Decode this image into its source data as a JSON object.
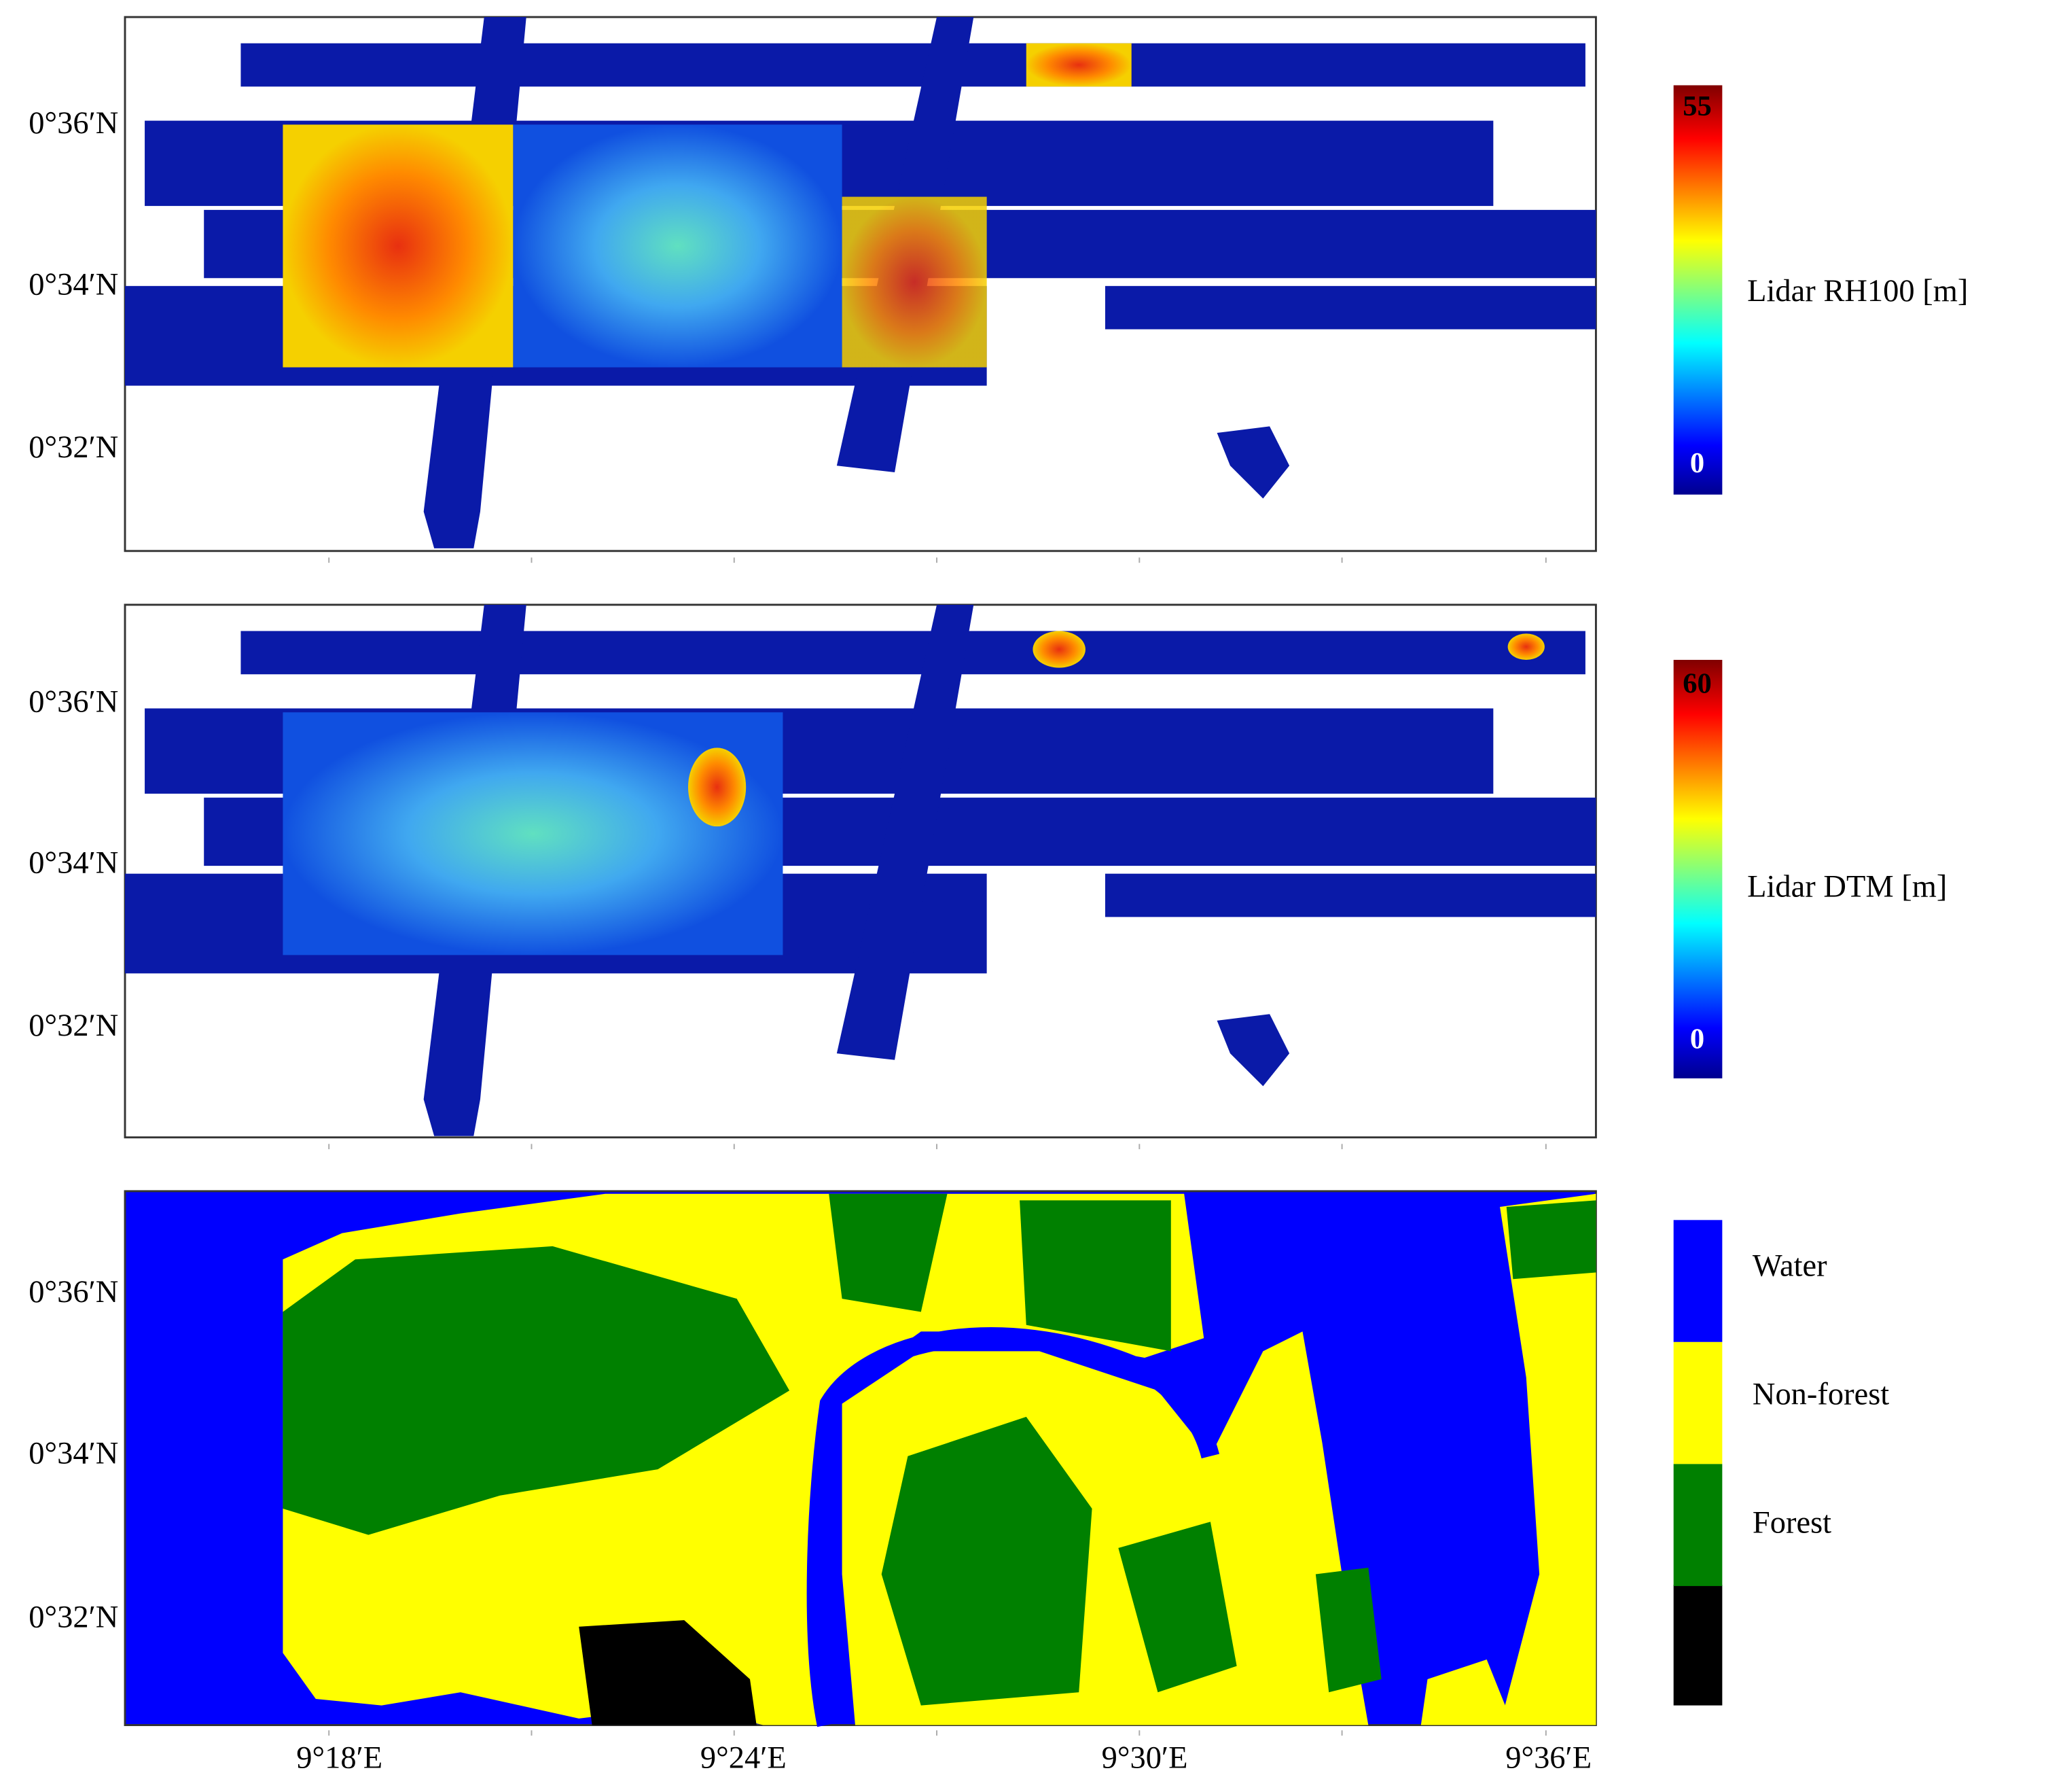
{
  "panels": [
    {
      "lat_labels": [
        "0°36′N",
        "0°34′N",
        "0°32′N"
      ],
      "colorbar": {
        "max": "55",
        "min": "0",
        "label": "Lidar RH100 [m]"
      }
    },
    {
      "lat_labels": [
        "0°36′N",
        "0°34′N",
        "0°32′N"
      ],
      "colorbar": {
        "max": "60",
        "min": "0",
        "label": "Lidar DTM  [m]"
      }
    },
    {
      "lat_labels": [
        "0°36′N",
        "0°34′N",
        "0°32′N"
      ],
      "legend": [
        {
          "name": "Water",
          "color": "#0000ff"
        },
        {
          "name": "Non-forest",
          "color": "#ffff00"
        },
        {
          "name": "Forest",
          "color": "#008000"
        }
      ]
    }
  ],
  "x_labels": [
    "9°18′E",
    "9°24′E",
    "9°30′E",
    "9°36′E"
  ]
}
